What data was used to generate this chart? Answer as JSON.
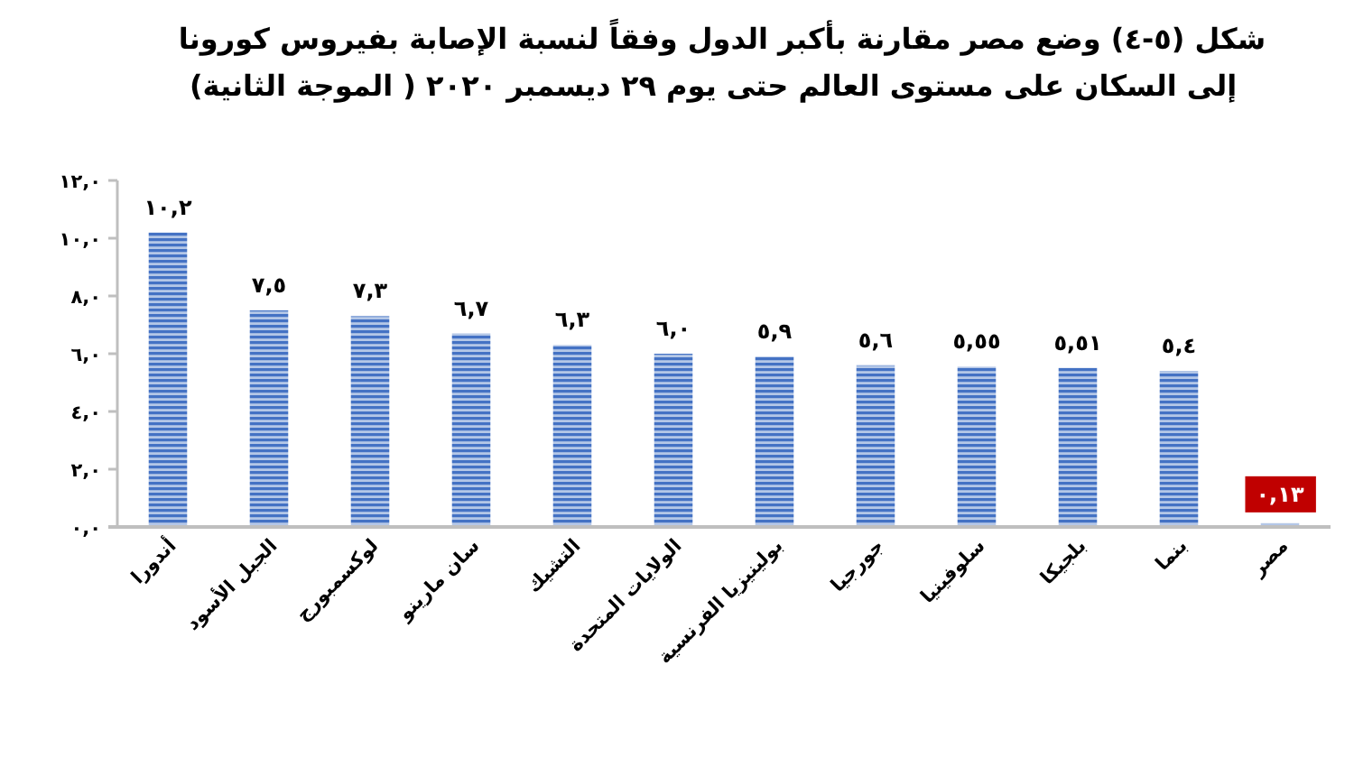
{
  "chart_data": {
    "type": "bar",
    "title": "شكل (٥-٤) وضع مصر مقارنة بأكبر الدول وفقاً لنسبة الإصابة بفيروس كورونا",
    "subtitle": "إلى السكان على مستوى العالم حتى يوم ٢٩ ديسمبر ٢٠٢٠ ( الموجة الثانية)",
    "categories": [
      "أندورا",
      "الجبل الأسود",
      "لوكسمبورج",
      "سان مارينو",
      "التشيك",
      "الولايات المتحدة",
      "بولينيزيا الفرنسية",
      "جورجيا",
      "سلوفينيا",
      "بلجيكا",
      "بنما",
      "مصر"
    ],
    "values": [
      10.2,
      7.5,
      7.3,
      6.7,
      6.3,
      6.0,
      5.9,
      5.6,
      5.55,
      5.51,
      5.4,
      0.13
    ],
    "value_labels": [
      "١٠,٢",
      "٧,٥",
      "٧,٣",
      "٦,٧",
      "٦,٣",
      "٦,٠",
      "٥,٩",
      "٥,٦",
      "٥,٥٥",
      "٥,٥١",
      "٥,٤",
      null
    ],
    "annotations": [
      {
        "text": "٠,١٣",
        "x": "مصر",
        "y": 0.13
      }
    ],
    "color": "#4472c4",
    "ylim": [
      0,
      12
    ],
    "yticks": [
      {
        "value": 0,
        "label": "٠,٠"
      },
      {
        "value": 2,
        "label": "٢,٠"
      },
      {
        "value": 4,
        "label": "٤,٠"
      },
      {
        "value": 6,
        "label": "٦,٠"
      },
      {
        "value": 8,
        "label": "٨,٠"
      },
      {
        "value": 10,
        "label": "١٠,٠"
      },
      {
        "value": 12,
        "label": "١٢,٠"
      }
    ]
  }
}
